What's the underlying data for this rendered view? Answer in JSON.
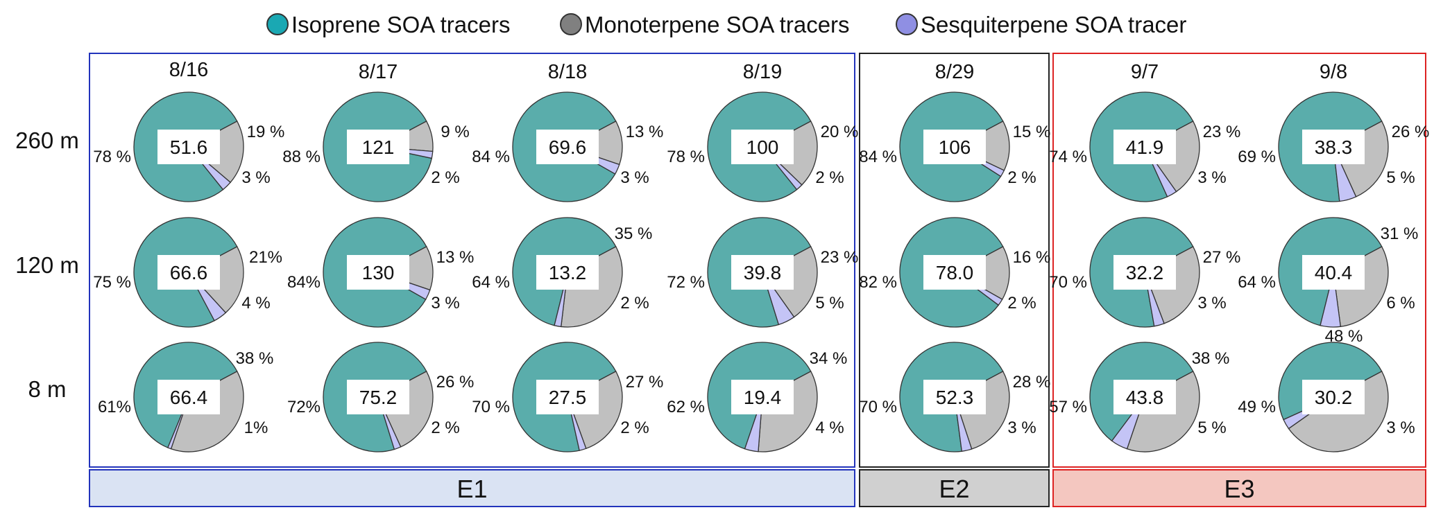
{
  "legend": {
    "items": [
      {
        "label": "Isoprene SOA tracers",
        "color": "#1aa8b3"
      },
      {
        "label": "Monoterpene SOA tracers",
        "color": "#808080"
      },
      {
        "label": "Sesquiterpene SOA tracer",
        "color": "#8f8fe3"
      }
    ]
  },
  "colors": {
    "isoprene": "#5aadab",
    "monoterpene": "#c0c0c0",
    "sesquiterpene": "#c4c4f6",
    "e1_fill": "#dae3f3",
    "e1_stroke": "#2233bb",
    "e2_fill": "#d0d0d0",
    "e2_stroke": "#222222",
    "e3_fill": "#f4c7c0",
    "e3_stroke": "#dd2222"
  },
  "chart_data": {
    "type": "pie",
    "series_names": [
      "Isoprene SOA tracers",
      "Monoterpene SOA tracers",
      "Sesquiterpene SOA tracer"
    ],
    "heights": [
      "260 m",
      "120 m",
      "8 m"
    ],
    "dates": [
      "8/16",
      "8/17",
      "8/18",
      "8/19",
      "8/29",
      "9/7",
      "9/8"
    ],
    "episodes": [
      {
        "label": "E1",
        "dates": [
          "8/16",
          "8/17",
          "8/18",
          "8/19"
        ]
      },
      {
        "label": "E2",
        "dates": [
          "8/29"
        ]
      },
      {
        "label": "E3",
        "dates": [
          "9/7",
          "9/8"
        ]
      }
    ],
    "pies": [
      {
        "date": "8/16",
        "height": "260 m",
        "total": "51.6",
        "values": [
          78,
          19,
          3
        ],
        "labels": [
          "78 %",
          "19 %",
          "3 %"
        ]
      },
      {
        "date": "8/16",
        "height": "120 m",
        "total": "66.6",
        "values": [
          75,
          21,
          4
        ],
        "labels": [
          "75 %",
          "21%",
          "4 %"
        ]
      },
      {
        "date": "8/16",
        "height": "8 m",
        "total": "66.4",
        "values": [
          61,
          38,
          1
        ],
        "labels": [
          "61%",
          "38 %",
          "1%"
        ]
      },
      {
        "date": "8/17",
        "height": "260 m",
        "total": "121",
        "values": [
          88,
          9,
          2
        ],
        "labels": [
          "88 %",
          "9 %",
          "2 %"
        ]
      },
      {
        "date": "8/17",
        "height": "120 m",
        "total": "130",
        "values": [
          84,
          13,
          3
        ],
        "labels": [
          "84%",
          "13 %",
          "3 %"
        ]
      },
      {
        "date": "8/17",
        "height": "8 m",
        "total": "75.2",
        "values": [
          72,
          26,
          2
        ],
        "labels": [
          "72%",
          "26 %",
          "2 %"
        ]
      },
      {
        "date": "8/18",
        "height": "260 m",
        "total": "69.6",
        "values": [
          84,
          13,
          3
        ],
        "labels": [
          "84 %",
          "13 %",
          "3 %"
        ]
      },
      {
        "date": "8/18",
        "height": "120 m",
        "total": "13.2",
        "values": [
          64,
          35,
          2
        ],
        "labels": [
          "64 %",
          "35 %",
          "2 %"
        ]
      },
      {
        "date": "8/18",
        "height": "8 m",
        "total": "27.5",
        "values": [
          70,
          27,
          2
        ],
        "labels": [
          "70 %",
          "27 %",
          "2 %"
        ]
      },
      {
        "date": "8/19",
        "height": "260 m",
        "total": "100",
        "values": [
          78,
          20,
          2
        ],
        "labels": [
          "78 %",
          "20 %",
          "2 %"
        ]
      },
      {
        "date": "8/19",
        "height": "120 m",
        "total": "39.8",
        "values": [
          72,
          23,
          5
        ],
        "labels": [
          "72 %",
          "23 %",
          "5 %"
        ]
      },
      {
        "date": "8/19",
        "height": "8 m",
        "total": "19.4",
        "values": [
          62,
          34,
          4
        ],
        "labels": [
          "62 %",
          "34 %",
          "4 %"
        ]
      },
      {
        "date": "8/29",
        "height": "260 m",
        "total": "106",
        "values": [
          84,
          15,
          2
        ],
        "labels": [
          "84 %",
          "15 %",
          "2 %"
        ]
      },
      {
        "date": "8/29",
        "height": "120 m",
        "total": "78.0",
        "values": [
          82,
          16,
          2
        ],
        "labels": [
          "82 %",
          "16 %",
          "2 %"
        ]
      },
      {
        "date": "8/29",
        "height": "8 m",
        "total": "52.3",
        "values": [
          70,
          28,
          3
        ],
        "labels": [
          "70 %",
          "28 %",
          "3 %"
        ]
      },
      {
        "date": "9/7",
        "height": "260 m",
        "total": "41.9",
        "values": [
          74,
          23,
          3
        ],
        "labels": [
          "74 %",
          "23 %",
          "3 %"
        ]
      },
      {
        "date": "9/7",
        "height": "120 m",
        "total": "32.2",
        "values": [
          70,
          27,
          3
        ],
        "labels": [
          "70 %",
          "27 %",
          "3 %"
        ]
      },
      {
        "date": "9/7",
        "height": "8 m",
        "total": "43.8",
        "values": [
          57,
          38,
          5
        ],
        "labels": [
          "57 %",
          "38 %",
          "5 %"
        ]
      },
      {
        "date": "9/8",
        "height": "260 m",
        "total": "38.3",
        "values": [
          69,
          26,
          5
        ],
        "labels": [
          "69 %",
          "26 %",
          "5 %"
        ]
      },
      {
        "date": "9/8",
        "height": "120 m",
        "total": "40.4",
        "values": [
          64,
          31,
          6
        ],
        "labels": [
          "64 %",
          "31 %",
          "6 %"
        ]
      },
      {
        "date": "9/8",
        "height": "8 m",
        "total": "30.2",
        "values": [
          49,
          48,
          3
        ],
        "labels": [
          "49 %",
          "48 %",
          "3 %"
        ]
      }
    ]
  }
}
